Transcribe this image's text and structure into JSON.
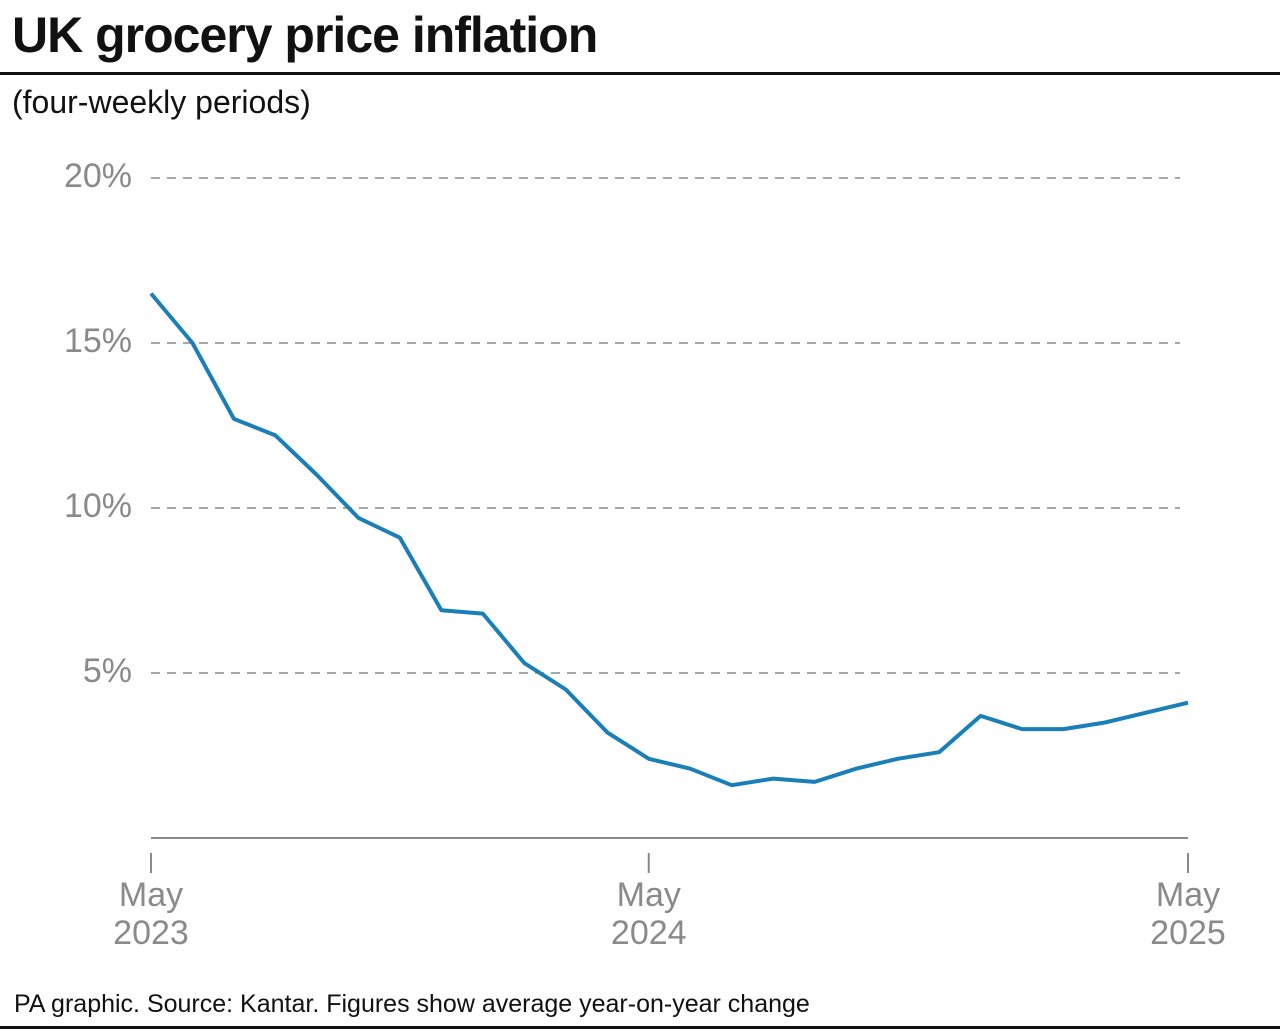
{
  "chart_data": {
    "type": "line",
    "title": "UK grocery price inflation",
    "subtitle": "(four-weekly periods)",
    "footer": "PA graphic. Source: Kantar. Figures show average year-on-year change",
    "categories": [
      "May 2023",
      null,
      null,
      null,
      null,
      null,
      null,
      null,
      null,
      null,
      null,
      null,
      "May 2024",
      null,
      null,
      null,
      null,
      null,
      null,
      null,
      null,
      null,
      null,
      null,
      null,
      "May 2025"
    ],
    "series": [
      {
        "name": "Grocery price inflation",
        "color": "#1a7fb9",
        "values": [
          16.5,
          15.0,
          12.7,
          12.2,
          11.0,
          9.7,
          9.1,
          6.9,
          6.8,
          5.3,
          4.5,
          3.2,
          2.4,
          2.1,
          1.6,
          1.8,
          1.7,
          2.1,
          2.4,
          2.6,
          3.7,
          3.3,
          3.3,
          3.5,
          3.8,
          4.1
        ]
      }
    ],
    "ylim": [
      0,
      20
    ],
    "yticks": [
      {
        "value": 5,
        "label": "5%"
      },
      {
        "value": 10,
        "label": "10%"
      },
      {
        "value": 15,
        "label": "15%"
      },
      {
        "value": 20,
        "label": "20%"
      }
    ],
    "grid": true
  }
}
